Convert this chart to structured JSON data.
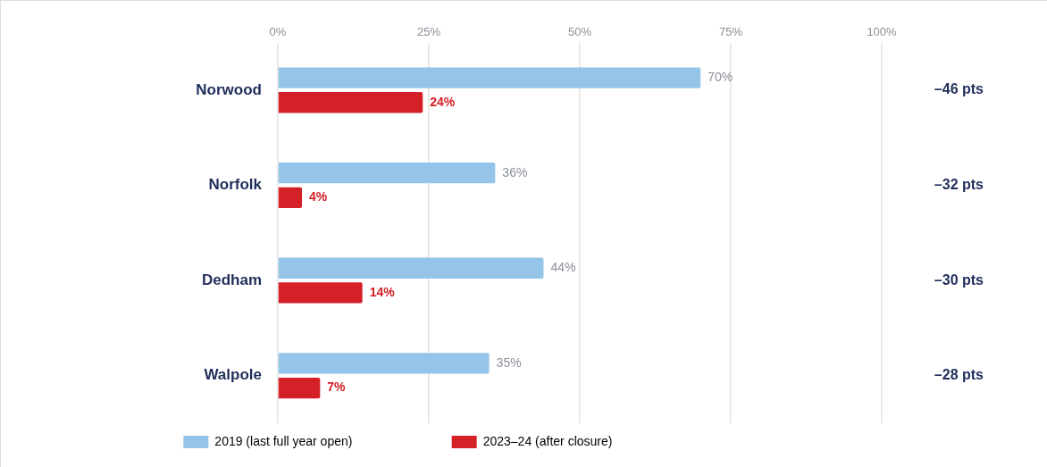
{
  "chart_data": {
    "type": "bar",
    "orientation": "horizontal",
    "categories": [
      "Norwood",
      "Norfolk",
      "Dedham",
      "Walpole"
    ],
    "series": [
      {
        "name": "2019 (last full year open)",
        "color": "#94c5e8",
        "values": [
          70,
          36,
          44,
          35
        ],
        "value_labels": [
          "70%",
          "36%",
          "44%",
          "35%"
        ]
      },
      {
        "name": "2023–24 (after closure)",
        "color": "#d42027",
        "values": [
          24,
          4,
          14,
          7
        ],
        "value_labels": [
          "24%",
          "4%",
          "14%",
          "7%"
        ]
      }
    ],
    "xlim": [
      0,
      100
    ],
    "xticks": [
      {
        "value": 0,
        "label": "0%"
      },
      {
        "value": 25,
        "label": "25%"
      },
      {
        "value": 50,
        "label": "50%"
      },
      {
        "value": 75,
        "label": "75%"
      },
      {
        "value": 100,
        "label": "100%"
      }
    ],
    "grid": "x",
    "legend": "bottom",
    "annotations": [
      "–46 pts",
      "–32 pts",
      "–30 pts",
      "–28 pts"
    ]
  }
}
